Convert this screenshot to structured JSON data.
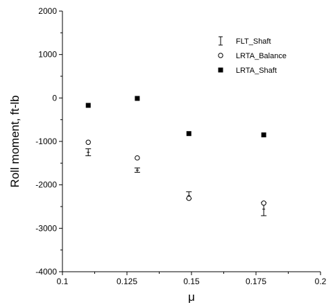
{
  "chart_data": {
    "type": "scatter",
    "title": "",
    "xlabel": "μ",
    "ylabel": "Roll moment, ft-lb",
    "xlim": [
      0.1,
      0.2
    ],
    "ylim": [
      -4000,
      2000
    ],
    "xticks": [
      "0.1",
      "0.125",
      "0.15",
      "0.175",
      "0.2"
    ],
    "xtick_values": [
      0.1,
      0.125,
      0.15,
      0.175,
      0.2
    ],
    "yticks": [
      "2000",
      "1000",
      "0",
      "-1000",
      "-2000",
      "-3000",
      "-4000"
    ],
    "ytick_values": [
      2000,
      1000,
      0,
      -1000,
      -2000,
      -3000,
      -4000
    ],
    "grid": false,
    "legend_position": "top-right",
    "series": [
      {
        "name": "FLT_Shaft",
        "marker": "errorbar",
        "x": [
          0.11,
          0.129,
          0.149,
          0.178
        ],
        "y": [
          -1250,
          -1660,
          -2250,
          -2560
        ],
        "err_low": [
          80,
          50,
          70,
          150
        ],
        "err_high": [
          80,
          50,
          90,
          150
        ]
      },
      {
        "name": "LRTA_Balance",
        "marker": "open-circle",
        "x": [
          0.11,
          0.129,
          0.149,
          0.178
        ],
        "y": [
          -1020,
          -1380,
          -2310,
          -2420
        ]
      },
      {
        "name": "LRTA_Shaft",
        "marker": "filled-square",
        "x": [
          0.11,
          0.129,
          0.149,
          0.178
        ],
        "y": [
          -170,
          -10,
          -820,
          -850
        ]
      }
    ]
  }
}
